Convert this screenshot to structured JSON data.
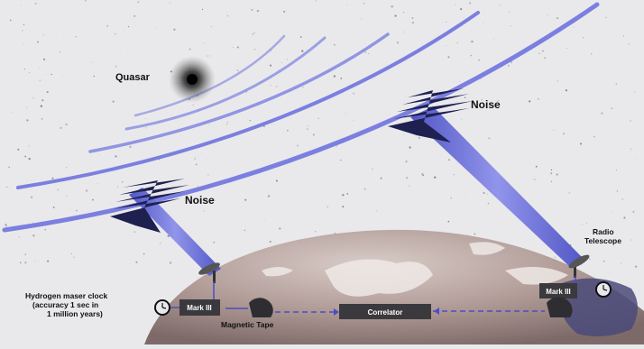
{
  "labels": {
    "quasar": "Quasar",
    "noise_left": "Noise",
    "noise_right": "Noise",
    "radio_telescope_line1": "Radio",
    "radio_telescope_line2": "Telescope",
    "clock_line1": "Hydrogen maser clock",
    "clock_line2": "(accuracy 1 sec in",
    "clock_line3": "1 million years)",
    "mark3_left": "Mark III",
    "mark3_right": "Mark III",
    "magnetic_tape": "Magnetic Tape",
    "correlator": "Correlator"
  },
  "colors": {
    "wave": "#7b7fe0",
    "beam": "#5a5fd0",
    "earth": "#b3a09c",
    "box": "#3a3a3e"
  }
}
